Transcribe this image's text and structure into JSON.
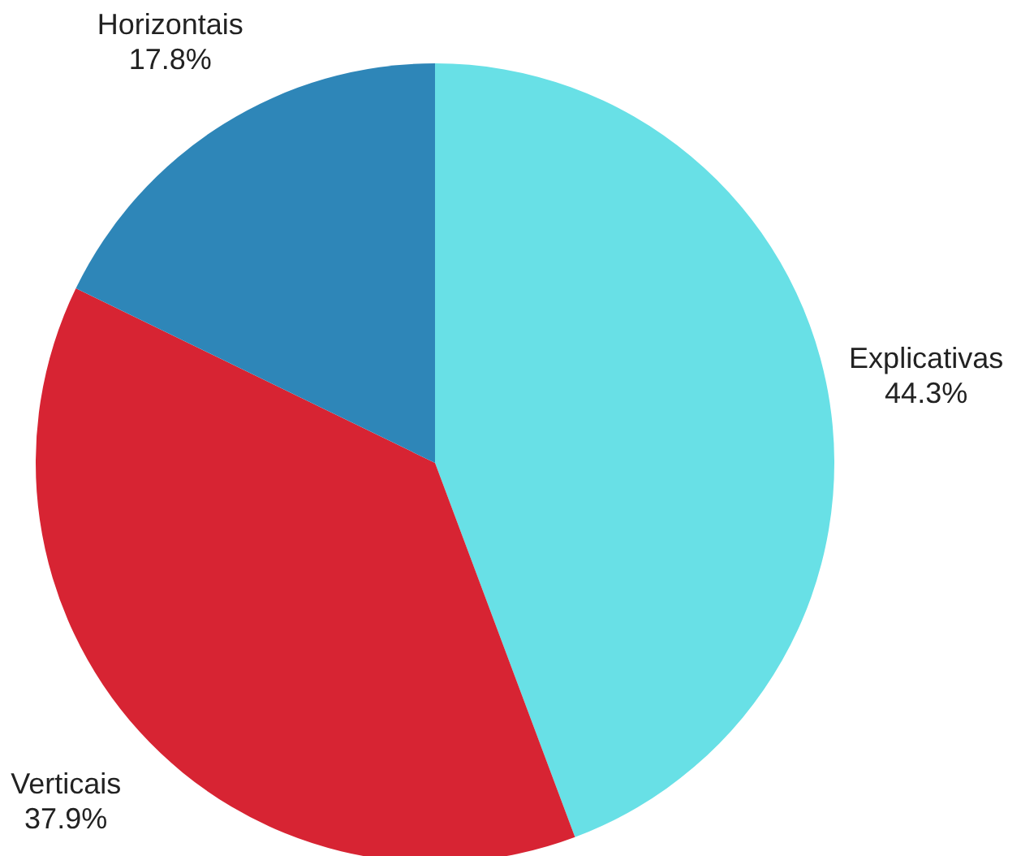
{
  "chart_data": {
    "type": "pie",
    "categories": [
      "Explicativas",
      "Verticais",
      "Horizontais"
    ],
    "values": [
      44.3,
      37.9,
      17.8
    ],
    "colors": [
      "#68e0e6",
      "#d72433",
      "#2e86b8"
    ],
    "value_labels": [
      "44.3%",
      "37.9%",
      "17.8%"
    ]
  }
}
